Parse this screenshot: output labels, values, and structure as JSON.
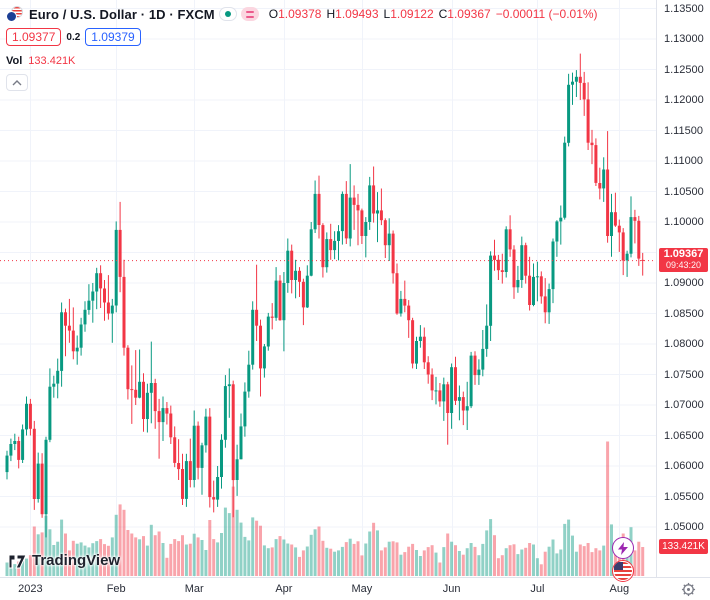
{
  "header": {
    "symbol_title": "Euro / U.S. Dollar · 1D · FXCM",
    "ohlc": {
      "o_label": "O",
      "o": "1.09378",
      "h_label": "H",
      "h": "1.09493",
      "l_label": "L",
      "l": "1.09122",
      "c_label": "C",
      "c": "1.09367",
      "change": "−0.00011 (−0.01%)"
    },
    "bid": "1.09377",
    "spread": "0.2",
    "ask": "1.09379",
    "vol_label": "Vol",
    "vol_value": "133.421K"
  },
  "axis": {
    "price_ticks": [
      "1.13500",
      "1.13000",
      "1.12500",
      "1.12000",
      "1.11500",
      "1.11000",
      "1.10500",
      "1.10000",
      "1.09500",
      "1.09000",
      "1.08500",
      "1.08000",
      "1.07500",
      "1.07000",
      "1.06500",
      "1.06000",
      "1.05500",
      "1.05000"
    ],
    "time_ticks": [
      {
        "label": "2023",
        "index": 6
      },
      {
        "label": "Feb",
        "index": 28
      },
      {
        "label": "Mar",
        "index": 48
      },
      {
        "label": "Apr",
        "index": 71
      },
      {
        "label": "May",
        "index": 91
      },
      {
        "label": "Jun",
        "index": 114
      },
      {
        "label": "Jul",
        "index": 136
      },
      {
        "label": "Aug",
        "index": 157
      }
    ],
    "last_price_label": {
      "price": "1.09367",
      "countdown": "09:43:20"
    },
    "volume_axis_label": "133.421K"
  },
  "watermark": {
    "brand": "TradingView"
  },
  "colors": {
    "up": "#089981",
    "down": "#f23645",
    "vol_up": "rgba(8,153,129,0.45)",
    "vol_down": "rgba(242,54,69,0.45)",
    "grid": "#f0f3fa",
    "accent_blue": "#2962ff",
    "label_bg": "#f23645",
    "axis_text": "#2a2e39"
  },
  "chart_data": {
    "type": "candlestick+volume",
    "title": "Euro / U.S. Dollar, 1D, FXCM",
    "x_axis": "Daily candles, late Dec 2022 – early Aug 2023",
    "ylabel": "EUR/USD",
    "y_range": [
      1.05,
      1.135
    ],
    "grid": true,
    "legend_position": "top-left",
    "last_close": 1.09367,
    "volume_unit": "K",
    "candles_format": [
      "open",
      "high",
      "low",
      "close",
      "volume_K"
    ],
    "candles": [
      [
        1.059,
        1.0625,
        1.0578,
        1.0617,
        62
      ],
      [
        1.0617,
        1.0645,
        1.0608,
        1.0636,
        48
      ],
      [
        1.0636,
        1.0653,
        1.0626,
        1.0641,
        55
      ],
      [
        1.0641,
        1.0648,
        1.0596,
        1.061,
        67
      ],
      [
        1.061,
        1.0668,
        1.0605,
        1.066,
        71
      ],
      [
        1.066,
        1.0714,
        1.065,
        1.0702,
        80
      ],
      [
        1.0702,
        1.071,
        1.065,
        1.0661,
        96
      ],
      [
        1.0661,
        1.0674,
        1.0528,
        1.0546,
        228
      ],
      [
        1.0546,
        1.0622,
        1.054,
        1.0604,
        192
      ],
      [
        1.0604,
        1.0621,
        1.0515,
        1.0521,
        201
      ],
      [
        1.0521,
        1.0648,
        1.0483,
        1.0643,
        278
      ],
      [
        1.0643,
        1.076,
        1.0639,
        1.073,
        215
      ],
      [
        1.073,
        1.0748,
        1.0712,
        1.0735,
        143
      ],
      [
        1.0735,
        1.0776,
        1.0711,
        1.0756,
        158
      ],
      [
        1.0756,
        1.0868,
        1.073,
        1.0852,
        260
      ],
      [
        1.0852,
        1.0858,
        1.078,
        1.083,
        196
      ],
      [
        1.083,
        1.0874,
        1.0802,
        1.0822,
        118
      ],
      [
        1.0822,
        1.086,
        1.0775,
        1.0788,
        162
      ],
      [
        1.0788,
        1.0814,
        1.0766,
        1.0794,
        149
      ],
      [
        1.0794,
        1.0843,
        1.0781,
        1.0832,
        155
      ],
      [
        1.0832,
        1.087,
        1.082,
        1.0856,
        140
      ],
      [
        1.0856,
        1.0898,
        1.0848,
        1.0871,
        132
      ],
      [
        1.0871,
        1.09,
        1.0835,
        1.0886,
        151
      ],
      [
        1.0886,
        1.0925,
        1.0857,
        1.0916,
        161
      ],
      [
        1.0916,
        1.0929,
        1.0859,
        1.0891,
        170
      ],
      [
        1.0891,
        1.0905,
        1.0838,
        1.0868,
        147
      ],
      [
        1.0868,
        1.0913,
        1.084,
        1.085,
        139
      ],
      [
        1.085,
        1.0874,
        1.0802,
        1.0863,
        178
      ],
      [
        1.0863,
        1.1001,
        1.0852,
        1.0987,
        282
      ],
      [
        1.0987,
        1.1033,
        1.0885,
        1.091,
        330
      ],
      [
        1.091,
        1.0938,
        1.0781,
        1.0794,
        305
      ],
      [
        1.0794,
        1.0798,
        1.0709,
        1.0726,
        212
      ],
      [
        1.0726,
        1.0765,
        1.0669,
        1.0725,
        196
      ],
      [
        1.0725,
        1.079,
        1.07,
        1.0712,
        178
      ],
      [
        1.0712,
        1.0791,
        1.0711,
        1.0738,
        169
      ],
      [
        1.0738,
        1.0752,
        1.0656,
        1.0677,
        184
      ],
      [
        1.0677,
        1.0735,
        1.0655,
        1.072,
        140
      ],
      [
        1.072,
        1.0804,
        1.067,
        1.0736,
        236
      ],
      [
        1.0736,
        1.0743,
        1.0661,
        1.069,
        188
      ],
      [
        1.069,
        1.071,
        1.0612,
        1.0672,
        205
      ],
      [
        1.0672,
        1.0714,
        1.0641,
        1.0695,
        152
      ],
      [
        1.0695,
        1.0705,
        1.0668,
        1.0686,
        84
      ],
      [
        1.0686,
        1.0699,
        1.0636,
        1.0647,
        148
      ],
      [
        1.0647,
        1.0665,
        1.0598,
        1.0605,
        170
      ],
      [
        1.0605,
        1.0644,
        1.0577,
        1.0595,
        161
      ],
      [
        1.0595,
        1.062,
        1.0536,
        1.0546,
        188
      ],
      [
        1.0546,
        1.062,
        1.0533,
        1.0608,
        145
      ],
      [
        1.0608,
        1.0645,
        1.0565,
        1.0577,
        149
      ],
      [
        1.0577,
        1.0691,
        1.0565,
        1.0666,
        195
      ],
      [
        1.0666,
        1.0673,
        1.0578,
        1.0597,
        178
      ],
      [
        1.0597,
        1.0638,
        1.0553,
        1.0634,
        166
      ],
      [
        1.0634,
        1.0694,
        1.0622,
        1.0681,
        120
      ],
      [
        1.0681,
        1.0695,
        1.0532,
        1.0549,
        258
      ],
      [
        1.0549,
        1.0576,
        1.0524,
        1.0545,
        170
      ],
      [
        1.0545,
        1.06,
        1.0533,
        1.0582,
        155
      ],
      [
        1.0582,
        1.0652,
        1.0563,
        1.0643,
        198
      ],
      [
        1.0643,
        1.0749,
        1.063,
        1.0731,
        315
      ],
      [
        1.0731,
        1.076,
        1.0679,
        1.0734,
        290
      ],
      [
        1.0734,
        1.074,
        1.0516,
        1.0577,
        412
      ],
      [
        1.0577,
        1.0635,
        1.0551,
        1.0611,
        305
      ],
      [
        1.0611,
        1.0686,
        1.0611,
        1.0665,
        246
      ],
      [
        1.0665,
        1.0737,
        1.0648,
        1.0722,
        180
      ],
      [
        1.0722,
        1.0789,
        1.0712,
        1.0766,
        164
      ],
      [
        1.0766,
        1.087,
        1.0758,
        1.0856,
        270
      ],
      [
        1.0856,
        1.093,
        1.0805,
        1.083,
        255
      ],
      [
        1.083,
        1.084,
        1.0714,
        1.076,
        232
      ],
      [
        1.076,
        1.08,
        1.0745,
        1.0796,
        141
      ],
      [
        1.0796,
        1.0851,
        1.0789,
        1.0845,
        128
      ],
      [
        1.0845,
        1.0867,
        1.0824,
        1.0843,
        132
      ],
      [
        1.0843,
        1.0926,
        1.0838,
        1.0904,
        170
      ],
      [
        1.0904,
        1.0913,
        1.0838,
        1.0839,
        184
      ],
      [
        1.0839,
        1.0918,
        1.0788,
        1.09,
        168
      ],
      [
        1.09,
        1.0973,
        1.0884,
        1.0953,
        150
      ],
      [
        1.0953,
        1.0963,
        1.0883,
        1.0905,
        145
      ],
      [
        1.0905,
        1.0938,
        1.0875,
        1.092,
        132
      ],
      [
        1.092,
        1.0926,
        1.0877,
        1.0902,
        88
      ],
      [
        1.0902,
        1.0907,
        1.0831,
        1.086,
        118
      ],
      [
        1.086,
        1.0929,
        1.0859,
        1.0912,
        136
      ],
      [
        1.0912,
        1.1,
        1.0911,
        1.0988,
        190
      ],
      [
        1.0988,
        1.1068,
        1.0982,
        1.1046,
        215
      ],
      [
        1.1046,
        1.1076,
        1.0973,
        1.0995,
        228
      ],
      [
        1.0995,
        1.0998,
        1.0909,
        1.0926,
        162
      ],
      [
        1.0926,
        1.0983,
        1.0917,
        1.0972,
        130
      ],
      [
        1.0972,
        1.0997,
        1.0938,
        1.0954,
        126
      ],
      [
        1.0954,
        1.0985,
        1.0939,
        1.0969,
        112
      ],
      [
        1.0969,
        1.0995,
        1.0937,
        1.0985,
        118
      ],
      [
        1.0985,
        1.105,
        1.0963,
        1.1046,
        134
      ],
      [
        1.1046,
        1.1067,
        1.0964,
        1.0973,
        156
      ],
      [
        1.0973,
        1.1095,
        1.096,
        1.104,
        172
      ],
      [
        1.104,
        1.106,
        1.0987,
        1.1028,
        148
      ],
      [
        1.1028,
        1.1046,
        1.0962,
        1.1019,
        160
      ],
      [
        1.1019,
        1.1022,
        1.0964,
        1.0977,
        95
      ],
      [
        1.0977,
        1.1008,
        1.0942,
        1.1,
        150
      ],
      [
        1.1,
        1.1074,
        1.0987,
        1.106,
        205
      ],
      [
        1.106,
        1.1091,
        1.0999,
        1.1014,
        245
      ],
      [
        1.1014,
        1.1049,
        1.0967,
        1.1019,
        210
      ],
      [
        1.1019,
        1.1055,
        1.0995,
        1.1003,
        118
      ],
      [
        1.1003,
        1.1006,
        1.0941,
        1.0962,
        132
      ],
      [
        1.0962,
        1.1006,
        1.0936,
        1.0981,
        158
      ],
      [
        1.0981,
        1.0986,
        1.0899,
        1.0916,
        160
      ],
      [
        1.0916,
        1.0932,
        1.0848,
        1.085,
        155
      ],
      [
        1.085,
        1.0887,
        1.0845,
        1.0874,
        98
      ],
      [
        1.0874,
        1.0904,
        1.0852,
        1.0863,
        110
      ],
      [
        1.0863,
        1.0872,
        1.081,
        1.0839,
        135
      ],
      [
        1.0839,
        1.0843,
        1.076,
        1.0768,
        148
      ],
      [
        1.0768,
        1.0812,
        1.0759,
        1.0805,
        120
      ],
      [
        1.0805,
        1.0831,
        1.0794,
        1.0812,
        92
      ],
      [
        1.0812,
        1.0827,
        1.0759,
        1.077,
        118
      ],
      [
        1.077,
        1.078,
        1.0735,
        1.075,
        133
      ],
      [
        1.075,
        1.076,
        1.0708,
        1.0724,
        142
      ],
      [
        1.0724,
        1.0746,
        1.0701,
        1.0724,
        108
      ],
      [
        1.0724,
        1.0736,
        1.0697,
        1.0706,
        62
      ],
      [
        1.0706,
        1.0745,
        1.0674,
        1.0734,
        133
      ],
      [
        1.0734,
        1.0738,
        1.0635,
        1.0687,
        196
      ],
      [
        1.0687,
        1.0768,
        1.0661,
        1.0762,
        158
      ],
      [
        1.0762,
        1.0779,
        1.07,
        1.0707,
        142
      ],
      [
        1.0707,
        1.0732,
        1.0675,
        1.0713,
        115
      ],
      [
        1.0713,
        1.0722,
        1.0667,
        1.0691,
        98
      ],
      [
        1.0691,
        1.0738,
        1.0659,
        1.0698,
        128
      ],
      [
        1.0698,
        1.0787,
        1.0695,
        1.0781,
        152
      ],
      [
        1.0781,
        1.0788,
        1.0733,
        1.0749,
        134
      ],
      [
        1.0749,
        1.0775,
        1.0733,
        1.0758,
        96
      ],
      [
        1.0758,
        1.0823,
        1.0747,
        1.0792,
        148
      ],
      [
        1.0792,
        1.0865,
        1.0779,
        1.083,
        210
      ],
      [
        1.083,
        1.0952,
        1.0805,
        1.0945,
        262
      ],
      [
        1.0945,
        1.0971,
        1.092,
        1.0938,
        188
      ],
      [
        1.0938,
        1.0946,
        1.0905,
        1.0921,
        82
      ],
      [
        1.0921,
        1.0948,
        1.0899,
        1.0918,
        96
      ],
      [
        1.0918,
        1.0993,
        1.0909,
        1.0988,
        128
      ],
      [
        1.0988,
        1.1011,
        1.0943,
        1.0955,
        142
      ],
      [
        1.0955,
        1.0962,
        1.0874,
        1.0893,
        146
      ],
      [
        1.0893,
        1.0928,
        1.0884,
        1.0905,
        101
      ],
      [
        1.0905,
        1.0976,
        1.0892,
        1.0962,
        122
      ],
      [
        1.0962,
        1.0966,
        1.0899,
        1.0912,
        130
      ],
      [
        1.0912,
        1.0943,
        1.0855,
        1.0864,
        152
      ],
      [
        1.0864,
        1.0932,
        1.0862,
        1.091,
        145
      ],
      [
        1.091,
        1.0935,
        1.087,
        1.0911,
        82
      ],
      [
        1.0911,
        1.0919,
        1.0866,
        1.0878,
        54
      ],
      [
        1.0878,
        1.0908,
        1.0834,
        1.0852,
        112
      ],
      [
        1.0852,
        1.0899,
        1.0833,
        1.089,
        135
      ],
      [
        1.089,
        1.0973,
        1.0867,
        1.0968,
        168
      ],
      [
        1.0968,
        1.1003,
        1.0943,
        1.1001,
        104
      ],
      [
        1.1001,
        1.1027,
        1.0963,
        1.1007,
        122
      ],
      [
        1.1007,
        1.114,
        1.1004,
        1.113,
        240
      ],
      [
        1.113,
        1.1243,
        1.1124,
        1.1225,
        260
      ],
      [
        1.1225,
        1.1245,
        1.1192,
        1.123,
        186
      ],
      [
        1.123,
        1.1249,
        1.1205,
        1.1238,
        112
      ],
      [
        1.1238,
        1.1276,
        1.12,
        1.1228,
        145
      ],
      [
        1.1228,
        1.1246,
        1.1174,
        1.1201,
        138
      ],
      [
        1.1201,
        1.1229,
        1.1118,
        1.113,
        152
      ],
      [
        1.113,
        1.1151,
        1.1095,
        1.1126,
        110
      ],
      [
        1.1126,
        1.1137,
        1.1059,
        1.1064,
        128
      ],
      [
        1.1064,
        1.1089,
        1.1037,
        1.1055,
        118
      ],
      [
        1.1055,
        1.1106,
        1.1033,
        1.1086,
        140
      ],
      [
        1.1086,
        1.1149,
        1.0966,
        1.0977,
        620
      ],
      [
        1.0977,
        1.1046,
        1.0943,
        1.1016,
        238
      ],
      [
        1.1016,
        1.1048,
        1.0992,
        1.0994,
        152
      ],
      [
        1.0994,
        1.1004,
        1.0951,
        1.0983,
        165
      ],
      [
        1.0983,
        1.099,
        1.0913,
        1.0937,
        196
      ],
      [
        1.0937,
        1.0953,
        1.091,
        1.0948,
        172
      ],
      [
        1.0948,
        1.1042,
        1.0942,
        1.1008,
        225
      ],
      [
        1.1008,
        1.102,
        1.0965,
        1.1002,
        118
      ],
      [
        1.1002,
        1.101,
        1.0928,
        1.094,
        158
      ],
      [
        1.09378,
        1.09493,
        1.09122,
        1.09367,
        133.421
      ]
    ]
  }
}
